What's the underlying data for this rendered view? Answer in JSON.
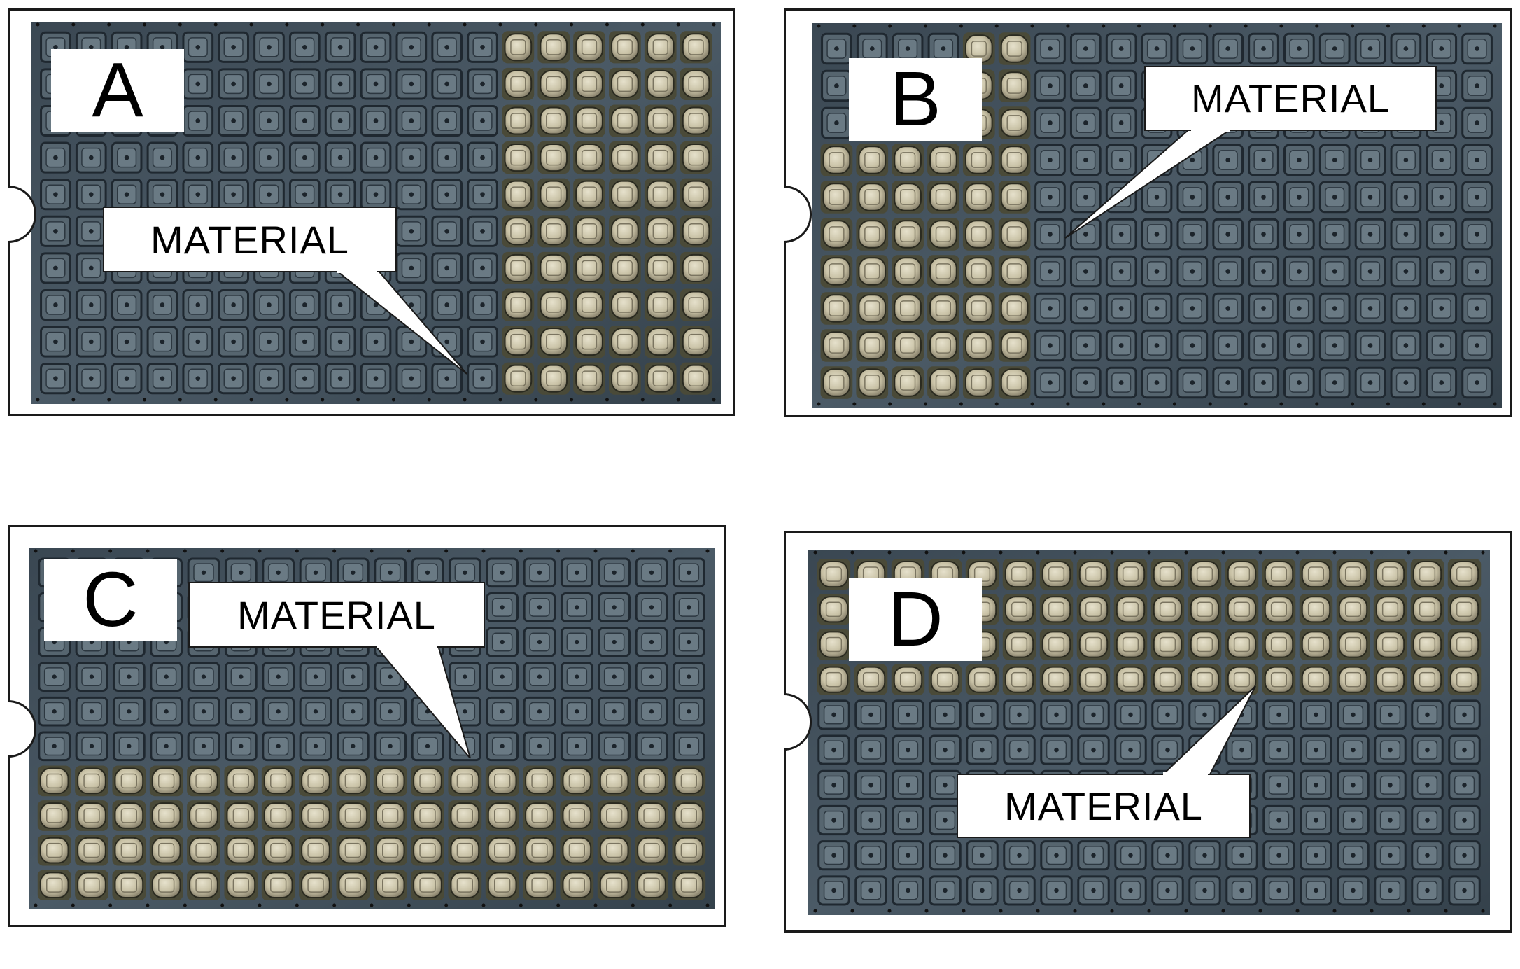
{
  "panels": [
    {
      "id": "A",
      "letter": "A",
      "label": "MATERIAL",
      "loaded_region": "right columns"
    },
    {
      "id": "B",
      "letter": "B",
      "label": "MATERIAL",
      "loaded_region": "left columns"
    },
    {
      "id": "C",
      "letter": "C",
      "label": "MATERIAL",
      "loaded_region": "bottom rows"
    },
    {
      "id": "D",
      "letter": "D",
      "label": "MATERIAL",
      "loaded_region": "top rows"
    }
  ],
  "colors": {
    "tray_dark": "#3c4a55",
    "tray_cell": "#4a5964",
    "material": "#cfc9b0",
    "frame": "#1a1a1a"
  }
}
